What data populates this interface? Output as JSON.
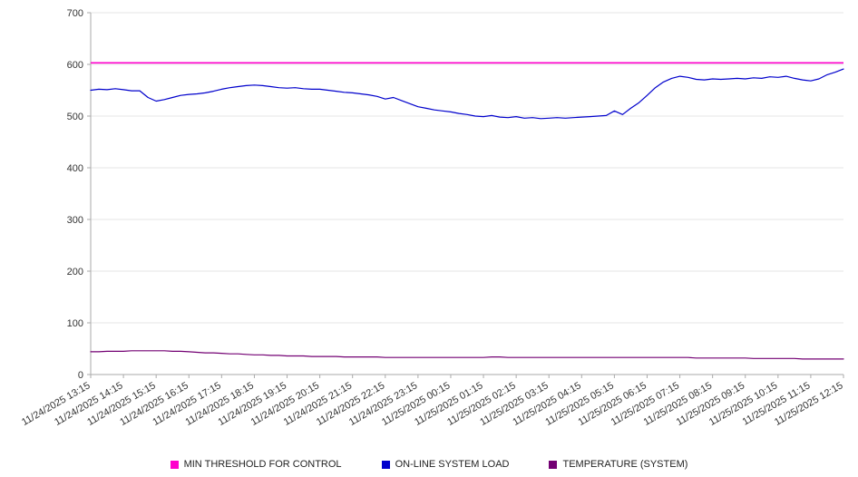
{
  "chart": {
    "background": "#ffffff",
    "grid_color": "#e6e6e6",
    "axis_color": "#aaaaaa",
    "tick_label_color": "#333333"
  },
  "legend": {
    "items": [
      {
        "label": "MIN THRESHOLD FOR CONTROL",
        "color": "#ff00cc"
      },
      {
        "label": "ON-LINE SYSTEM LOAD",
        "color": "#0000cc"
      },
      {
        "label": "TEMPERATURE (SYSTEM)",
        "color": "#730073"
      }
    ]
  },
  "chart_data": {
    "type": "line",
    "title": "",
    "xlabel": "",
    "ylabel": "",
    "ylim": [
      0,
      700
    ],
    "y_ticks": [
      0,
      100,
      200,
      300,
      400,
      500,
      600,
      700
    ],
    "grid": "horizontal",
    "legend_position": "bottom",
    "categories": [
      "11/24/2025 13:15",
      "11/24/2025 14:15",
      "11/24/2025 15:15",
      "11/24/2025 16:15",
      "11/24/2025 17:15",
      "11/24/2025 18:15",
      "11/24/2025 19:15",
      "11/24/2025 20:15",
      "11/24/2025 21:15",
      "11/24/2025 22:15",
      "11/24/2025 23:15",
      "11/25/2025 00:15",
      "11/25/2025 01:15",
      "11/25/2025 02:15",
      "11/25/2025 03:15",
      "11/25/2025 04:15",
      "11/25/2025 05:15",
      "11/25/2025 06:15",
      "11/25/2025 07:15",
      "11/25/2025 08:15",
      "11/25/2025 09:15",
      "11/25/2025 10:15",
      "11/25/2025 11:15",
      "11/25/2025 12:15"
    ],
    "points_per_category": 4,
    "series": [
      {
        "name": "MIN THRESHOLD FOR CONTROL",
        "color": "#ff00cc",
        "constant": 603
      },
      {
        "name": "ON-LINE SYSTEM LOAD",
        "color": "#0000cc",
        "values": [
          550,
          552,
          551,
          553,
          551,
          549,
          549,
          536,
          529,
          532,
          536,
          540,
          542,
          543,
          545,
          548,
          552,
          555,
          557,
          559,
          560,
          559,
          557,
          555,
          554,
          555,
          553,
          552,
          552,
          550,
          548,
          546,
          545,
          543,
          541,
          538,
          533,
          536,
          530,
          524,
          518,
          515,
          512,
          510,
          508,
          505,
          503,
          500,
          499,
          501,
          498,
          497,
          499,
          496,
          497,
          495,
          496,
          497,
          496,
          497,
          498,
          499,
          500,
          501,
          510,
          503,
          515,
          526,
          540,
          555,
          566,
          573,
          577,
          575,
          571,
          570,
          572,
          571,
          572,
          573,
          572,
          574,
          573,
          576,
          575,
          577,
          573,
          570,
          568,
          572,
          580,
          585,
          591
        ]
      },
      {
        "name": "TEMPERATURE (SYSTEM)",
        "color": "#730073",
        "values": [
          44,
          44,
          45,
          45,
          45,
          46,
          46,
          46,
          46,
          46,
          45,
          45,
          44,
          43,
          42,
          42,
          41,
          40,
          40,
          39,
          38,
          38,
          37,
          37,
          36,
          36,
          36,
          35,
          35,
          35,
          35,
          34,
          34,
          34,
          34,
          34,
          33,
          33,
          33,
          33,
          33,
          33,
          33,
          33,
          33,
          33,
          33,
          33,
          33,
          34,
          34,
          33,
          33,
          33,
          33,
          33,
          33,
          33,
          33,
          33,
          33,
          33,
          33,
          33,
          33,
          33,
          33,
          33,
          33,
          33,
          33,
          33,
          33,
          33,
          32,
          32,
          32,
          32,
          32,
          32,
          32,
          31,
          31,
          31,
          31,
          31,
          31,
          30,
          30,
          30,
          30,
          30,
          30
        ]
      }
    ]
  }
}
